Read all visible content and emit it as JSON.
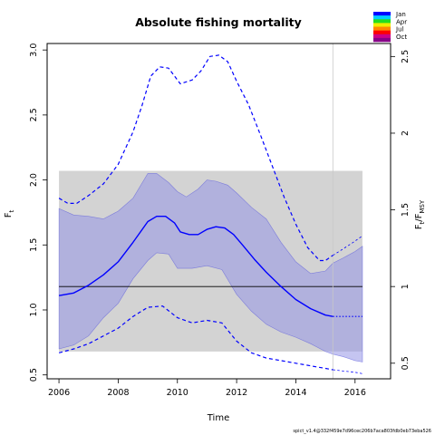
{
  "chart_data": {
    "type": "line",
    "title": "Absolute fishing mortality",
    "xlabel": "Time",
    "ylabel": "F",
    "ylabel_sub": "t",
    "y2label": "F",
    "y2label_sub_top": "t",
    "y2label_den": "F",
    "y2label_sub_den": "MSY",
    "footer": "spict_v1.4@332f459e7d96cec206b7aca803fdb0eb73eba526",
    "xlim": [
      2005.6,
      2017.2
    ],
    "ylim": [
      0.47,
      3.05
    ],
    "x_ticks": [
      2006,
      2008,
      2010,
      2012,
      2014,
      2016
    ],
    "y_ticks": [
      0.5,
      1.0,
      1.5,
      2.0,
      2.5,
      3.0
    ],
    "y_tick_labels": [
      "0.5",
      "1.0",
      "1.5",
      "2.0",
      "2.5",
      "3.0"
    ],
    "fmsy": 1.18,
    "y2_ticks": [
      0.5,
      1,
      1.5,
      2,
      2.5
    ],
    "y2_tick_labels": [
      "0.5",
      "1",
      "1.5",
      "2",
      "2.5"
    ],
    "fmsy_ci_band": [
      0.68,
      2.07
    ],
    "forecast_start": 2015.25,
    "legend": {
      "labels": [
        "Jan",
        "Apr",
        "Jul",
        "Oct"
      ],
      "colors": [
        "#0000ff",
        "#00ccff",
        "#22dd22",
        "#eeee00",
        "#ff8800",
        "#ff0000",
        "#cc0088",
        "#880088"
      ]
    },
    "series": [
      {
        "name": "estimate",
        "style": "solid",
        "color": "#0000ff",
        "x": [
          2006,
          2006.5,
          2007,
          2007.5,
          2008,
          2008.5,
          2009,
          2009.3,
          2009.6,
          2009.9,
          2010.1,
          2010.4,
          2010.7,
          2011,
          2011.3,
          2011.6,
          2011.9,
          2012.2,
          2012.6,
          2013,
          2013.5,
          2014,
          2014.5,
          2015,
          2015.25
        ],
        "y": [
          1.11,
          1.13,
          1.19,
          1.27,
          1.37,
          1.52,
          1.68,
          1.72,
          1.72,
          1.67,
          1.6,
          1.58,
          1.58,
          1.62,
          1.64,
          1.63,
          1.58,
          1.5,
          1.39,
          1.29,
          1.18,
          1.08,
          1.01,
          0.96,
          0.95
        ]
      },
      {
        "name": "estimate-forecast",
        "style": "dotted",
        "color": "#0000ff",
        "x": [
          2015.25,
          2015.6,
          2016,
          2016.25
        ],
        "y": [
          0.95,
          0.95,
          0.95,
          0.95
        ]
      },
      {
        "name": "ci-upper",
        "style": "dashed",
        "color": "#0000ff",
        "x": [
          2006,
          2006.3,
          2006.6,
          2007,
          2007.5,
          2008,
          2008.5,
          2008.8,
          2009.1,
          2009.4,
          2009.7,
          2010.1,
          2010.5,
          2010.8,
          2011.1,
          2011.4,
          2011.7,
          2012,
          2012.4,
          2012.8,
          2013.2,
          2013.6,
          2014,
          2014.4,
          2014.8,
          2015,
          2015.25
        ],
        "y": [
          1.86,
          1.82,
          1.82,
          1.88,
          1.97,
          2.12,
          2.37,
          2.57,
          2.8,
          2.87,
          2.86,
          2.74,
          2.77,
          2.84,
          2.95,
          2.96,
          2.91,
          2.76,
          2.58,
          2.35,
          2.11,
          1.87,
          1.66,
          1.48,
          1.38,
          1.38,
          1.42
        ]
      },
      {
        "name": "ci-upper-forecast",
        "style": "dashed-thin",
        "color": "#0000ff",
        "x": [
          2015.25,
          2015.6,
          2016,
          2016.25
        ],
        "y": [
          1.42,
          1.47,
          1.53,
          1.57
        ]
      },
      {
        "name": "ci-lower",
        "style": "dashed",
        "color": "#0000ff",
        "x": [
          2006,
          2006.5,
          2007,
          2007.5,
          2008,
          2008.5,
          2009,
          2009.5,
          2010,
          2010.5,
          2011,
          2011.5,
          2012,
          2012.5,
          2013,
          2013.5,
          2014,
          2014.5,
          2015,
          2015.25
        ],
        "y": [
          0.67,
          0.7,
          0.74,
          0.8,
          0.86,
          0.95,
          1.02,
          1.03,
          0.94,
          0.9,
          0.92,
          0.9,
          0.76,
          0.67,
          0.63,
          0.61,
          0.59,
          0.57,
          0.55,
          0.54
        ]
      },
      {
        "name": "ci-lower-forecast",
        "style": "dashed-thin",
        "color": "#0000ff",
        "x": [
          2015.25,
          2015.6,
          2016,
          2016.25
        ],
        "y": [
          0.54,
          0.53,
          0.52,
          0.51
        ]
      },
      {
        "name": "fmsy-band-upper",
        "style": "fill",
        "color": "#aaaaee",
        "x": [
          2006,
          2006.5,
          2007,
          2007.5,
          2008,
          2008.5,
          2009,
          2009.3,
          2009.7,
          2010,
          2010.3,
          2010.7,
          2011,
          2011.3,
          2011.7,
          2012,
          2012.5,
          2013,
          2013.5,
          2014,
          2014.5,
          2015,
          2015.25,
          2015.6,
          2016,
          2016.25
        ],
        "y": [
          1.78,
          1.73,
          1.72,
          1.7,
          1.76,
          1.86,
          2.05,
          2.05,
          1.98,
          1.91,
          1.87,
          1.93,
          2.0,
          1.99,
          1.96,
          1.9,
          1.79,
          1.7,
          1.52,
          1.37,
          1.28,
          1.3,
          1.36,
          1.4,
          1.45,
          1.49
        ]
      },
      {
        "name": "fmsy-band-lower",
        "style": "fill",
        "color": "#aaaaee",
        "x": [
          2006,
          2006.5,
          2007,
          2007.5,
          2008,
          2008.5,
          2009,
          2009.3,
          2009.7,
          2010,
          2010.5,
          2011,
          2011.5,
          2012,
          2012.5,
          2013,
          2013.5,
          2014,
          2014.5,
          2015,
          2015.25,
          2015.6,
          2016,
          2016.25
        ],
        "y": [
          0.7,
          0.73,
          0.8,
          0.94,
          1.05,
          1.24,
          1.38,
          1.44,
          1.43,
          1.32,
          1.32,
          1.34,
          1.31,
          1.12,
          0.99,
          0.89,
          0.83,
          0.79,
          0.74,
          0.68,
          0.66,
          0.64,
          0.61,
          0.6
        ]
      }
    ]
  }
}
